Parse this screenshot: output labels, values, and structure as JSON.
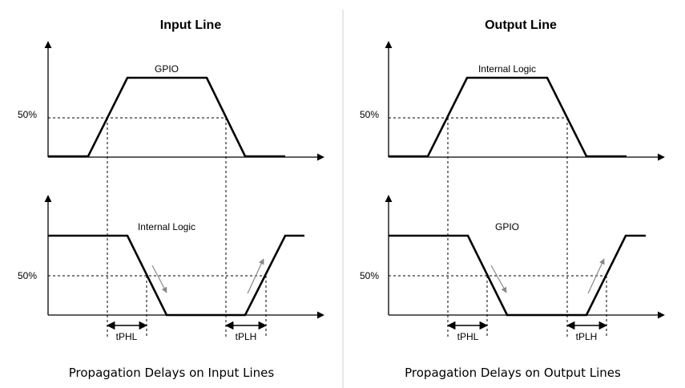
{
  "panels": [
    {
      "title": "Input Line",
      "top_signal": "GPIO",
      "bottom_signal": "Internal Logic",
      "threshold_top": "50%",
      "threshold_bottom": "50%",
      "delay_hl": "tPHL",
      "delay_lh": "tPLH",
      "caption": "Propagation Delays on Input Lines"
    },
    {
      "title": "Output Line",
      "top_signal": "Internal Logic",
      "bottom_signal": "GPIO",
      "threshold_top": "50%",
      "threshold_bottom": "50%",
      "delay_hl": "tPHL",
      "delay_lh": "tPLH",
      "caption": "Propagation Delays on Output Lines"
    }
  ],
  "colors": {
    "line": "#000000",
    "indicator_arrow": "#888888",
    "divider": "#cfcfcf"
  }
}
